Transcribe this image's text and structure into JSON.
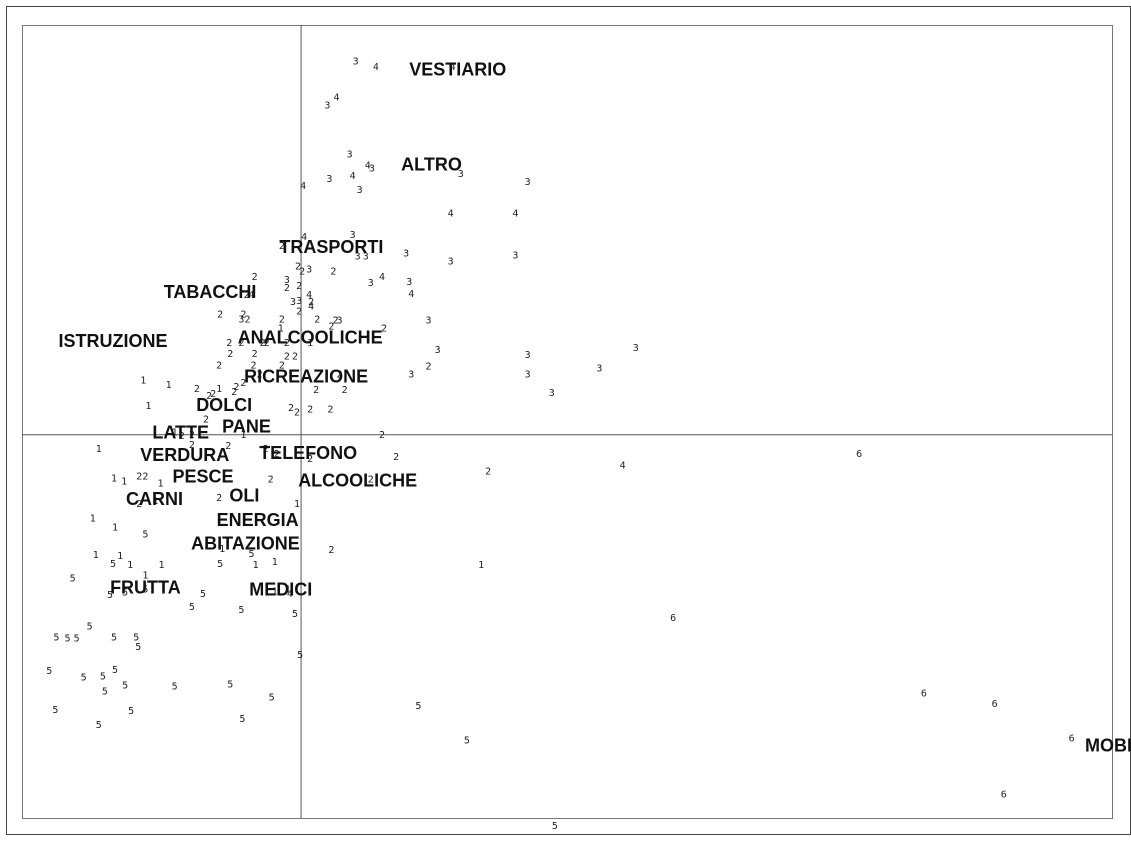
{
  "chart_data": {
    "type": "scatter",
    "title": "",
    "xlabel": "",
    "ylabel": "",
    "grid": false,
    "legend": "none",
    "axes_lines": {
      "x": 0,
      "y": 0
    },
    "xlim": [
      -2.76,
      8.02
    ],
    "ylim": [
      -3.76,
      4.02
    ],
    "points": [
      {
        "x": 0.54,
        "y": 3.66,
        "label": "3"
      },
      {
        "x": 0.74,
        "y": 3.61,
        "label": "4"
      },
      {
        "x": 1.5,
        "y": 3.61,
        "label": "4"
      },
      {
        "x": 0.35,
        "y": 3.31,
        "label": "4"
      },
      {
        "x": 0.26,
        "y": 3.23,
        "label": "3"
      },
      {
        "x": 0.48,
        "y": 2.75,
        "label": "3"
      },
      {
        "x": 0.66,
        "y": 2.64,
        "label": "4"
      },
      {
        "x": 0.7,
        "y": 2.61,
        "label": "3"
      },
      {
        "x": 0.51,
        "y": 2.54,
        "label": "4"
      },
      {
        "x": 0.28,
        "y": 2.51,
        "label": "3"
      },
      {
        "x": 1.58,
        "y": 2.56,
        "label": "3"
      },
      {
        "x": 2.24,
        "y": 2.48,
        "label": "3"
      },
      {
        "x": 0.02,
        "y": 2.44,
        "label": "4"
      },
      {
        "x": 0.58,
        "y": 2.4,
        "label": "3"
      },
      {
        "x": 1.48,
        "y": 2.17,
        "label": "4"
      },
      {
        "x": 2.12,
        "y": 2.17,
        "label": "4"
      },
      {
        "x": 0.51,
        "y": 1.96,
        "label": "3"
      },
      {
        "x": 0.03,
        "y": 1.94,
        "label": "4"
      },
      {
        "x": -0.19,
        "y": 1.85,
        "label": "2"
      },
      {
        "x": 0.56,
        "y": 1.75,
        "label": "3"
      },
      {
        "x": 0.64,
        "y": 1.75,
        "label": "3"
      },
      {
        "x": 1.04,
        "y": 1.78,
        "label": "3"
      },
      {
        "x": 2.12,
        "y": 1.76,
        "label": "3"
      },
      {
        "x": 1.48,
        "y": 1.7,
        "label": "3"
      },
      {
        "x": -0.03,
        "y": 1.65,
        "label": "2"
      },
      {
        "x": 0.01,
        "y": 1.6,
        "label": "2"
      },
      {
        "x": 0.08,
        "y": 1.62,
        "label": "3"
      },
      {
        "x": 0.32,
        "y": 1.6,
        "label": "2"
      },
      {
        "x": 0.8,
        "y": 1.55,
        "label": "4"
      },
      {
        "x": -0.46,
        "y": 1.55,
        "label": "2"
      },
      {
        "x": -0.14,
        "y": 1.52,
        "label": "3"
      },
      {
        "x": 0.69,
        "y": 1.49,
        "label": "3"
      },
      {
        "x": 1.07,
        "y": 1.5,
        "label": "3"
      },
      {
        "x": -0.14,
        "y": 1.44,
        "label": "2"
      },
      {
        "x": -0.02,
        "y": 1.46,
        "label": "2"
      },
      {
        "x": 1.09,
        "y": 1.38,
        "label": "4"
      },
      {
        "x": -0.54,
        "y": 1.37,
        "label": "2"
      },
      {
        "x": -0.49,
        "y": 1.37,
        "label": "4"
      },
      {
        "x": 0.08,
        "y": 1.37,
        "label": "4"
      },
      {
        "x": 0.1,
        "y": 1.3,
        "label": "2"
      },
      {
        "x": -0.08,
        "y": 1.3,
        "label": "3"
      },
      {
        "x": -0.02,
        "y": 1.31,
        "label": "3"
      },
      {
        "x": 0.1,
        "y": 1.26,
        "label": "4"
      },
      {
        "x": -0.8,
        "y": 1.18,
        "label": "2"
      },
      {
        "x": -0.57,
        "y": 1.18,
        "label": "2"
      },
      {
        "x": -0.02,
        "y": 1.21,
        "label": "2"
      },
      {
        "x": -0.59,
        "y": 1.13,
        "label": "3"
      },
      {
        "x": -0.53,
        "y": 1.13,
        "label": "2"
      },
      {
        "x": -0.19,
        "y": 1.13,
        "label": "2"
      },
      {
        "x": 0.16,
        "y": 1.13,
        "label": "2"
      },
      {
        "x": 0.34,
        "y": 1.12,
        "label": "2"
      },
      {
        "x": 0.3,
        "y": 1.06,
        "label": "2"
      },
      {
        "x": 0.38,
        "y": 1.12,
        "label": "3"
      },
      {
        "x": 1.26,
        "y": 1.12,
        "label": "3"
      },
      {
        "x": 0.82,
        "y": 1.04,
        "label": "2"
      },
      {
        "x": -0.2,
        "y": 1.04,
        "label": "1"
      },
      {
        "x": -0.71,
        "y": 0.9,
        "label": "2"
      },
      {
        "x": -0.59,
        "y": 0.9,
        "label": "2"
      },
      {
        "x": -0.38,
        "y": 0.9,
        "label": "2"
      },
      {
        "x": -0.34,
        "y": 0.9,
        "label": "2"
      },
      {
        "x": -0.14,
        "y": 0.9,
        "label": "2"
      },
      {
        "x": 0.09,
        "y": 0.9,
        "label": "1"
      },
      {
        "x": -0.7,
        "y": 0.79,
        "label": "2"
      },
      {
        "x": -0.46,
        "y": 0.79,
        "label": "2"
      },
      {
        "x": -0.14,
        "y": 0.77,
        "label": "2"
      },
      {
        "x": -0.06,
        "y": 0.77,
        "label": "2"
      },
      {
        "x": -0.81,
        "y": 0.68,
        "label": "2"
      },
      {
        "x": -0.19,
        "y": 0.68,
        "label": "2"
      },
      {
        "x": -0.47,
        "y": 0.68,
        "label": "2"
      },
      {
        "x": 1.35,
        "y": 0.83,
        "label": "3"
      },
      {
        "x": 2.24,
        "y": 0.78,
        "label": "3"
      },
      {
        "x": 3.31,
        "y": 0.85,
        "label": "3"
      },
      {
        "x": 1.26,
        "y": 0.67,
        "label": "2"
      },
      {
        "x": 1.09,
        "y": 0.59,
        "label": "3"
      },
      {
        "x": 0.38,
        "y": 0.59,
        "label": "2"
      },
      {
        "x": -0.41,
        "y": 0.59,
        "label": "2"
      },
      {
        "x": 2.24,
        "y": 0.59,
        "label": "3"
      },
      {
        "x": 2.95,
        "y": 0.65,
        "label": "3"
      },
      {
        "x": -1.56,
        "y": 0.53,
        "label": "1"
      },
      {
        "x": -1.31,
        "y": 0.49,
        "label": "1"
      },
      {
        "x": -1.03,
        "y": 0.45,
        "label": "2"
      },
      {
        "x": -0.91,
        "y": 0.38,
        "label": "2"
      },
      {
        "x": -0.87,
        "y": 0.4,
        "label": "2"
      },
      {
        "x": -0.81,
        "y": 0.45,
        "label": "1"
      },
      {
        "x": -0.66,
        "y": 0.42,
        "label": "2"
      },
      {
        "x": -0.64,
        "y": 0.47,
        "label": "2"
      },
      {
        "x": -0.57,
        "y": 0.51,
        "label": "2"
      },
      {
        "x": 0.15,
        "y": 0.44,
        "label": "2"
      },
      {
        "x": 0.43,
        "y": 0.44,
        "label": "2"
      },
      {
        "x": 2.48,
        "y": 0.41,
        "label": "3"
      },
      {
        "x": -1.51,
        "y": 0.28,
        "label": "1"
      },
      {
        "x": -0.1,
        "y": 0.26,
        "label": "2"
      },
      {
        "x": -0.04,
        "y": 0.22,
        "label": "2"
      },
      {
        "x": 0.09,
        "y": 0.25,
        "label": "2"
      },
      {
        "x": 0.29,
        "y": 0.25,
        "label": "2"
      },
      {
        "x": -0.94,
        "y": 0.15,
        "label": "2"
      },
      {
        "x": -1.25,
        "y": 0.02,
        "label": "1"
      },
      {
        "x": -1.08,
        "y": 0.0,
        "label": "2"
      },
      {
        "x": -0.57,
        "y": 0.0,
        "label": "1"
      },
      {
        "x": 0.8,
        "y": 0.0,
        "label": "2"
      },
      {
        "x": -1.18,
        "y": -0.01,
        "label": "2"
      },
      {
        "x": -2.0,
        "y": -0.14,
        "label": "1"
      },
      {
        "x": -1.08,
        "y": -0.1,
        "label": "2"
      },
      {
        "x": -0.72,
        "y": -0.11,
        "label": "2"
      },
      {
        "x": -0.35,
        "y": -0.14,
        "label": "2"
      },
      {
        "x": -0.24,
        "y": -0.19,
        "label": "2"
      },
      {
        "x": 0.09,
        "y": -0.24,
        "label": "2"
      },
      {
        "x": 0.94,
        "y": -0.22,
        "label": "2"
      },
      {
        "x": 5.52,
        "y": -0.19,
        "label": "6"
      },
      {
        "x": 3.18,
        "y": -0.3,
        "label": "4"
      },
      {
        "x": 1.85,
        "y": -0.36,
        "label": "2"
      },
      {
        "x": -1.85,
        "y": -0.43,
        "label": "1"
      },
      {
        "x": -1.75,
        "y": -0.46,
        "label": "1"
      },
      {
        "x": -1.6,
        "y": -0.41,
        "label": "2"
      },
      {
        "x": -1.54,
        "y": -0.41,
        "label": "2"
      },
      {
        "x": -1.39,
        "y": -0.48,
        "label": "1"
      },
      {
        "x": -0.3,
        "y": -0.44,
        "label": "2"
      },
      {
        "x": 0.69,
        "y": -0.44,
        "label": "2"
      },
      {
        "x": -1.6,
        "y": -0.68,
        "label": "2"
      },
      {
        "x": -1.44,
        "y": -0.65,
        "label": "1"
      },
      {
        "x": -0.81,
        "y": -0.62,
        "label": "2"
      },
      {
        "x": -2.06,
        "y": -0.82,
        "label": "1"
      },
      {
        "x": -1.84,
        "y": -0.91,
        "label": "1"
      },
      {
        "x": -1.54,
        "y": -0.98,
        "label": "5"
      },
      {
        "x": -0.04,
        "y": -0.68,
        "label": "1"
      },
      {
        "x": 0.3,
        "y": -1.13,
        "label": "2"
      },
      {
        "x": -2.03,
        "y": -1.18,
        "label": "1"
      },
      {
        "x": -1.79,
        "y": -1.19,
        "label": "1"
      },
      {
        "x": -1.86,
        "y": -1.27,
        "label": "5"
      },
      {
        "x": -1.69,
        "y": -1.28,
        "label": "1"
      },
      {
        "x": -1.38,
        "y": -1.28,
        "label": "1"
      },
      {
        "x": -0.8,
        "y": -1.27,
        "label": "5"
      },
      {
        "x": -0.45,
        "y": -1.28,
        "label": "1"
      },
      {
        "x": -0.26,
        "y": -1.25,
        "label": "1"
      },
      {
        "x": -0.49,
        "y": -1.17,
        "label": "5"
      },
      {
        "x": -0.78,
        "y": -1.12,
        "label": "1"
      },
      {
        "x": 1.78,
        "y": -1.28,
        "label": "1"
      },
      {
        "x": -2.26,
        "y": -1.41,
        "label": "5"
      },
      {
        "x": -1.54,
        "y": -1.38,
        "label": "1"
      },
      {
        "x": -1.89,
        "y": -1.57,
        "label": "5"
      },
      {
        "x": -1.74,
        "y": -1.55,
        "label": "5"
      },
      {
        "x": -1.54,
        "y": -1.52,
        "label": "5"
      },
      {
        "x": -0.97,
        "y": -1.56,
        "label": "5"
      },
      {
        "x": -0.26,
        "y": -1.54,
        "label": "1"
      },
      {
        "x": -0.11,
        "y": -1.56,
        "label": "4"
      },
      {
        "x": -0.13,
        "y": -1.52,
        "label": "1"
      },
      {
        "x": -1.08,
        "y": -1.69,
        "label": "5"
      },
      {
        "x": -0.59,
        "y": -1.72,
        "label": "5"
      },
      {
        "x": -0.06,
        "y": -1.76,
        "label": "5"
      },
      {
        "x": 3.68,
        "y": -1.8,
        "label": "6"
      },
      {
        "x": -2.09,
        "y": -1.88,
        "label": "5"
      },
      {
        "x": -2.42,
        "y": -1.99,
        "label": "5"
      },
      {
        "x": -2.31,
        "y": -2.0,
        "label": "5"
      },
      {
        "x": -2.22,
        "y": -2.0,
        "label": "5"
      },
      {
        "x": -1.85,
        "y": -1.99,
        "label": "5"
      },
      {
        "x": -1.63,
        "y": -1.99,
        "label": "5"
      },
      {
        "x": -1.61,
        "y": -2.08,
        "label": "5"
      },
      {
        "x": -0.01,
        "y": -2.16,
        "label": "5"
      },
      {
        "x": -2.49,
        "y": -2.32,
        "label": "5"
      },
      {
        "x": -2.15,
        "y": -2.38,
        "label": "5"
      },
      {
        "x": -1.96,
        "y": -2.37,
        "label": "5"
      },
      {
        "x": -1.84,
        "y": -2.31,
        "label": "5"
      },
      {
        "x": -1.94,
        "y": -2.52,
        "label": "5"
      },
      {
        "x": -1.74,
        "y": -2.46,
        "label": "5"
      },
      {
        "x": -1.25,
        "y": -2.47,
        "label": "5"
      },
      {
        "x": -0.7,
        "y": -2.45,
        "label": "5"
      },
      {
        "x": -0.29,
        "y": -2.58,
        "label": "5"
      },
      {
        "x": 6.16,
        "y": -2.54,
        "label": "6"
      },
      {
        "x": 6.86,
        "y": -2.64,
        "label": "6"
      },
      {
        "x": -2.43,
        "y": -2.7,
        "label": "5"
      },
      {
        "x": -1.68,
        "y": -2.71,
        "label": "5"
      },
      {
        "x": 1.16,
        "y": -2.66,
        "label": "5"
      },
      {
        "x": -2.0,
        "y": -2.85,
        "label": "5"
      },
      {
        "x": -0.58,
        "y": -2.79,
        "label": "5"
      },
      {
        "x": 1.64,
        "y": -3.0,
        "label": "5"
      },
      {
        "x": 7.62,
        "y": -2.98,
        "label": "6"
      },
      {
        "x": 6.95,
        "y": -3.53,
        "label": "6"
      },
      {
        "x": 2.51,
        "y": -3.84,
        "label": "5"
      }
    ],
    "categories": [
      {
        "label": "VESTIARIO",
        "x": 1.55,
        "y": 3.57
      },
      {
        "label": "ALTRO",
        "x": 1.29,
        "y": 2.64
      },
      {
        "label": "TRASPORTI",
        "x": 0.3,
        "y": 1.83
      },
      {
        "label": "TABACCHI",
        "x": -0.9,
        "y": 1.39
      },
      {
        "label": "ISTRUZIONE",
        "x": -1.86,
        "y": 0.91
      },
      {
        "label": "ANALCOOLICHE",
        "x": 0.09,
        "y": 0.94
      },
      {
        "label": "RICREAZIONE",
        "x": 0.05,
        "y": 0.56
      },
      {
        "label": "DOLCI",
        "x": -0.76,
        "y": 0.28
      },
      {
        "label": "PANE",
        "x": -0.54,
        "y": 0.07
      },
      {
        "label": "LATTE",
        "x": -1.19,
        "y": 0.01
      },
      {
        "label": "VERDURA",
        "x": -1.15,
        "y": -0.21
      },
      {
        "label": "TELEFONO",
        "x": 0.07,
        "y": -0.19
      },
      {
        "label": "PESCE",
        "x": -0.97,
        "y": -0.42
      },
      {
        "label": "ALCOOLICHE",
        "x": 0.56,
        "y": -0.46
      },
      {
        "label": "CARNI",
        "x": -1.45,
        "y": -0.64
      },
      {
        "label": "OLI",
        "x": -0.56,
        "y": -0.61
      },
      {
        "label": "ENERGIA",
        "x": -0.43,
        "y": -0.85
      },
      {
        "label": "ABITAZIONE",
        "x": -0.55,
        "y": -1.08
      },
      {
        "label": "FRUTTA",
        "x": -1.54,
        "y": -1.51
      },
      {
        "label": "MEDICI",
        "x": -0.2,
        "y": -1.53
      },
      {
        "label": "MOBIL",
        "x": 8.04,
        "y": -3.06
      }
    ]
  }
}
